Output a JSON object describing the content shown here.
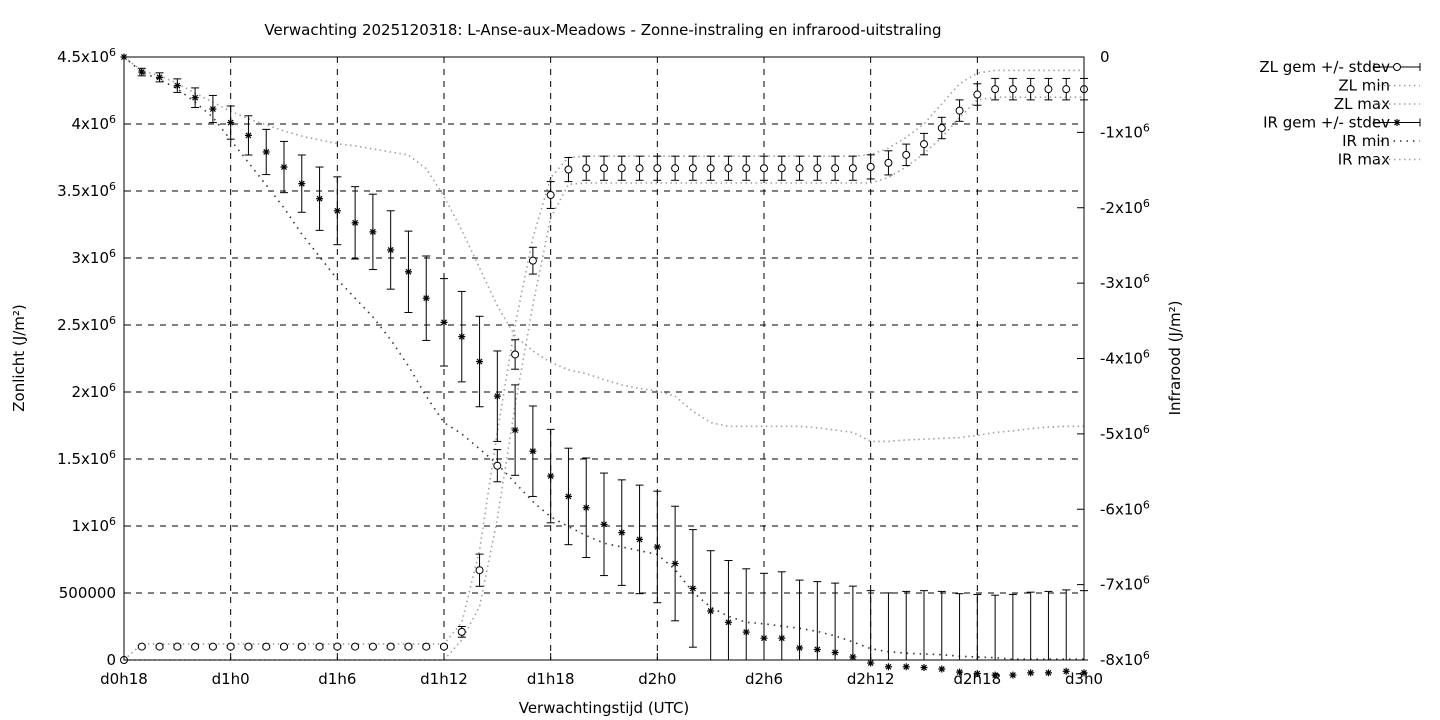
{
  "chart_data": {
    "type": "line",
    "title": "Verwachting 2025120318: L-Anse-aux-Meadows - Zonne-instraling en infrarood-uitstraling",
    "xlabel": "Verwachtingstijd (UTC)",
    "ylabel": "Zonlicht (J/m²)",
    "y2label": "Infrarood (J/m²)",
    "x_unit": "hours since d0h18",
    "xlim": [
      0,
      54
    ],
    "ylim": [
      0,
      4500000
    ],
    "y2lim": [
      -8000000,
      0
    ],
    "grid": true,
    "legend_position": "outside-top-right",
    "x_ticks": [
      {
        "x": 0,
        "label": "d0h18"
      },
      {
        "x": 6,
        "label": "d1h0"
      },
      {
        "x": 12,
        "label": "d1h6"
      },
      {
        "x": 18,
        "label": "d1h12"
      },
      {
        "x": 24,
        "label": "d1h18"
      },
      {
        "x": 30,
        "label": "d2h0"
      },
      {
        "x": 36,
        "label": "d2h6"
      },
      {
        "x": 42,
        "label": "d2h12"
      },
      {
        "x": 48,
        "label": "d2h18"
      },
      {
        "x": 54,
        "label": "d3h0"
      }
    ],
    "y_ticks": [
      {
        "v": 0,
        "base": "0",
        "exp": ""
      },
      {
        "v": 500000,
        "base": "500000",
        "exp": ""
      },
      {
        "v": 1000000,
        "base": "1x10",
        "exp": "6"
      },
      {
        "v": 1500000,
        "base": "1.5x10",
        "exp": "6"
      },
      {
        "v": 2000000,
        "base": "2x10",
        "exp": "6"
      },
      {
        "v": 2500000,
        "base": "2.5x10",
        "exp": "6"
      },
      {
        "v": 3000000,
        "base": "3x10",
        "exp": "6"
      },
      {
        "v": 3500000,
        "base": "3.5x10",
        "exp": "6"
      },
      {
        "v": 4000000,
        "base": "4x10",
        "exp": "6"
      },
      {
        "v": 4500000,
        "base": "4.5x10",
        "exp": "6"
      }
    ],
    "y2_ticks": [
      {
        "v": 0,
        "base": "0",
        "exp": ""
      },
      {
        "v": -1000000,
        "base": "-1x10",
        "exp": "6"
      },
      {
        "v": -2000000,
        "base": "-2x10",
        "exp": "6"
      },
      {
        "v": -3000000,
        "base": "-3x10",
        "exp": "6"
      },
      {
        "v": -4000000,
        "base": "-4x10",
        "exp": "6"
      },
      {
        "v": -5000000,
        "base": "-5x10",
        "exp": "6"
      },
      {
        "v": -6000000,
        "base": "-6x10",
        "exp": "6"
      },
      {
        "v": -7000000,
        "base": "-7x10",
        "exp": "6"
      },
      {
        "v": -8000000,
        "base": "-8x10",
        "exp": "6"
      }
    ],
    "x": [
      0,
      1,
      2,
      3,
      4,
      5,
      6,
      7,
      8,
      9,
      10,
      11,
      12,
      13,
      14,
      15,
      16,
      17,
      18,
      19,
      20,
      21,
      22,
      23,
      24,
      25,
      26,
      27,
      28,
      29,
      30,
      31,
      32,
      33,
      34,
      35,
      36,
      37,
      38,
      39,
      40,
      41,
      42,
      43,
      44,
      45,
      46,
      47,
      48,
      49,
      50,
      51,
      52,
      53,
      54
    ],
    "series": [
      {
        "name": "ZL gem +/- stdev",
        "axis": "y",
        "marker": "circle",
        "mean": [
          0,
          100000,
          100000,
          100000,
          100000,
          100000,
          100000,
          100000,
          100000,
          100000,
          100000,
          100000,
          100000,
          100000,
          100000,
          100000,
          100000,
          100000,
          100000,
          210000,
          670000,
          1450000,
          2280000,
          2980000,
          3470000,
          3660000,
          3670000,
          3670000,
          3670000,
          3670000,
          3670000,
          3670000,
          3670000,
          3670000,
          3670000,
          3670000,
          3670000,
          3670000,
          3670000,
          3670000,
          3670000,
          3670000,
          3680000,
          3710000,
          3770000,
          3850000,
          3970000,
          4100000,
          4220000,
          4260000,
          4260000,
          4260000,
          4260000,
          4260000,
          4260000
        ],
        "stdev": [
          0,
          10000,
          10000,
          10000,
          10000,
          10000,
          10000,
          10000,
          10000,
          10000,
          10000,
          10000,
          10000,
          10000,
          10000,
          10000,
          10000,
          10000,
          10000,
          40000,
          120000,
          120000,
          110000,
          100000,
          100000,
          90000,
          90000,
          90000,
          90000,
          90000,
          90000,
          90000,
          90000,
          90000,
          90000,
          90000,
          90000,
          90000,
          90000,
          90000,
          90000,
          90000,
          90000,
          90000,
          80000,
          80000,
          80000,
          80000,
          80000,
          80000,
          80000,
          80000,
          80000,
          80000,
          80000
        ]
      },
      {
        "name": "ZL min",
        "axis": "y",
        "values": [
          0,
          0,
          0,
          0,
          0,
          0,
          0,
          0,
          0,
          0,
          0,
          0,
          0,
          0,
          0,
          0,
          0,
          0,
          0,
          150000,
          400000,
          1050000,
          1900000,
          2650000,
          3300000,
          3550000,
          3560000,
          3560000,
          3560000,
          3560000,
          3560000,
          3560000,
          3560000,
          3560000,
          3560000,
          3560000,
          3560000,
          3560000,
          3560000,
          3560000,
          3560000,
          3560000,
          3560000,
          3600000,
          3680000,
          3780000,
          3900000,
          4050000,
          4180000,
          4200000,
          4200000,
          4200000,
          4200000,
          4200000,
          4200000
        ]
      },
      {
        "name": "ZL max",
        "axis": "y",
        "values": [
          0,
          120000,
          120000,
          120000,
          120000,
          120000,
          120000,
          120000,
          120000,
          120000,
          120000,
          120000,
          120000,
          120000,
          120000,
          120000,
          120000,
          120000,
          120000,
          280000,
          820000,
          1700000,
          2500000,
          3150000,
          3600000,
          3750000,
          3760000,
          3760000,
          3760000,
          3760000,
          3760000,
          3760000,
          3760000,
          3760000,
          3760000,
          3760000,
          3760000,
          3760000,
          3760000,
          3760000,
          3760000,
          3760000,
          3770000,
          3820000,
          3900000,
          4000000,
          4150000,
          4300000,
          4380000,
          4400000,
          4400000,
          4400000,
          4400000,
          4400000,
          4400000
        ]
      },
      {
        "name": "IR gem +/- stdev",
        "axis": "y2",
        "marker": "star",
        "mean": [
          0,
          -200000,
          -270000,
          -380000,
          -540000,
          -690000,
          -870000,
          -1040000,
          -1260000,
          -1460000,
          -1680000,
          -1880000,
          -2040000,
          -2200000,
          -2320000,
          -2560000,
          -2850000,
          -3200000,
          -3520000,
          -3710000,
          -4040000,
          -4500000,
          -4950000,
          -5230000,
          -5560000,
          -5830000,
          -5980000,
          -6200000,
          -6310000,
          -6400000,
          -6500000,
          -6720000,
          -7050000,
          -7350000,
          -7500000,
          -7630000,
          -7710000,
          -7710000,
          -7840000,
          -7860000,
          -7900000,
          -7960000,
          -8040000,
          -8090000,
          -8090000,
          -8100000,
          -8120000,
          -8160000,
          -8180000,
          -8200000,
          -8200000,
          -8170000,
          -8170000,
          -8150000,
          -8170000
        ],
        "stdev": [
          0,
          50000,
          60000,
          90000,
          130000,
          180000,
          220000,
          260000,
          300000,
          340000,
          380000,
          420000,
          450000,
          480000,
          500000,
          520000,
          540000,
          560000,
          580000,
          600000,
          600000,
          600000,
          600000,
          600000,
          620000,
          640000,
          660000,
          680000,
          700000,
          720000,
          740000,
          760000,
          780000,
          800000,
          820000,
          840000,
          860000,
          880000,
          900000,
          900000,
          920000,
          940000,
          960000,
          980000,
          1000000,
          1020000,
          1030000,
          1040000,
          1050000,
          1060000,
          1070000,
          1070000,
          1080000,
          1080000,
          1090000
        ]
      },
      {
        "name": "IR min",
        "axis": "y2",
        "values": [
          0,
          -200000,
          -300000,
          -420000,
          -600000,
          -800000,
          -1100000,
          -1400000,
          -1700000,
          -2000000,
          -2350000,
          -2650000,
          -2950000,
          -3200000,
          -3450000,
          -3750000,
          -4100000,
          -4500000,
          -4850000,
          -5000000,
          -5200000,
          -5400000,
          -5650000,
          -5900000,
          -6100000,
          -6230000,
          -6350000,
          -6450000,
          -6500000,
          -6550000,
          -6600000,
          -6800000,
          -7100000,
          -7300000,
          -7420000,
          -7500000,
          -7520000,
          -7550000,
          -7580000,
          -7620000,
          -7680000,
          -7760000,
          -7850000,
          -7890000,
          -7910000,
          -7920000,
          -7930000,
          -7950000,
          -7960000,
          -7970000,
          -7990000,
          -7990000,
          -7990000,
          -7990000,
          -7990000
        ]
      },
      {
        "name": "IR max",
        "axis": "y2",
        "values": [
          0,
          -180000,
          -250000,
          -350000,
          -480000,
          -600000,
          -720000,
          -820000,
          -900000,
          -980000,
          -1050000,
          -1100000,
          -1150000,
          -1180000,
          -1220000,
          -1260000,
          -1300000,
          -1480000,
          -1850000,
          -2300000,
          -2800000,
          -3300000,
          -3700000,
          -3900000,
          -4050000,
          -4150000,
          -4200000,
          -4280000,
          -4350000,
          -4400000,
          -4430000,
          -4500000,
          -4700000,
          -4850000,
          -4900000,
          -4900000,
          -4900000,
          -4900000,
          -4900000,
          -4920000,
          -4950000,
          -4980000,
          -5100000,
          -5100000,
          -5080000,
          -5070000,
          -5060000,
          -5050000,
          -5020000,
          -4980000,
          -4960000,
          -4930000,
          -4910000,
          -4900000,
          -4900000
        ]
      }
    ]
  }
}
